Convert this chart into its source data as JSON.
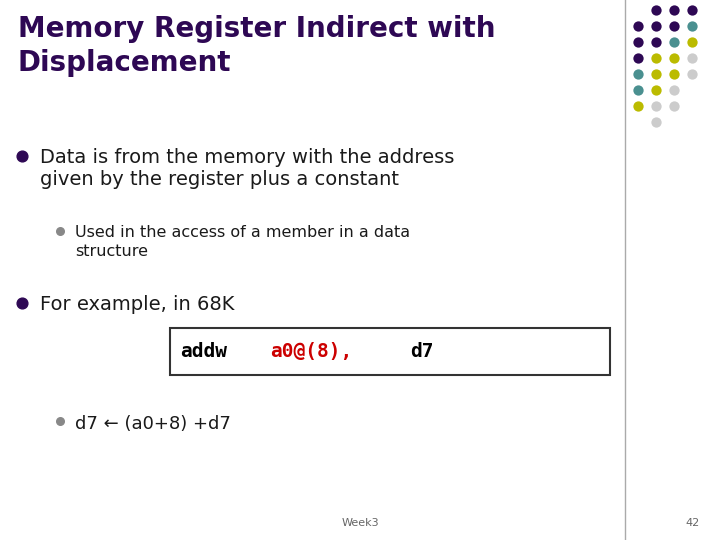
{
  "title_line1": "Memory Register Indirect with",
  "title_line2": "Displacement",
  "title_color": "#2E0854",
  "background_color": "#FFFFFF",
  "bullet1_text_line1": "Data is from the memory with the address",
  "bullet1_text_line2": "given by the register plus a constant",
  "bullet1_color": "#1a1a1a",
  "sub_bullet1_line1": "Used in the access of a member in a data",
  "sub_bullet1_line2": "structure",
  "sub_bullet1_color": "#1a1a1a",
  "bullet2_text": "For example, in 68K",
  "bullet2_color": "#1a1a1a",
  "code_black1": "addw",
  "code_red": "a0@(8),",
  "code_black2": " d7",
  "bullet3_text": "d7 ← (a0+8) +d7",
  "bullet3_color": "#1a1a1a",
  "footer_week": "Week3",
  "footer_num": "42",
  "dot_colors": [
    "#2E0854",
    "#4A9090",
    "#BBBB00",
    "#CCCCCC"
  ],
  "main_bullet_color": "#2E0854",
  "sub_bullet_color": "#888888"
}
